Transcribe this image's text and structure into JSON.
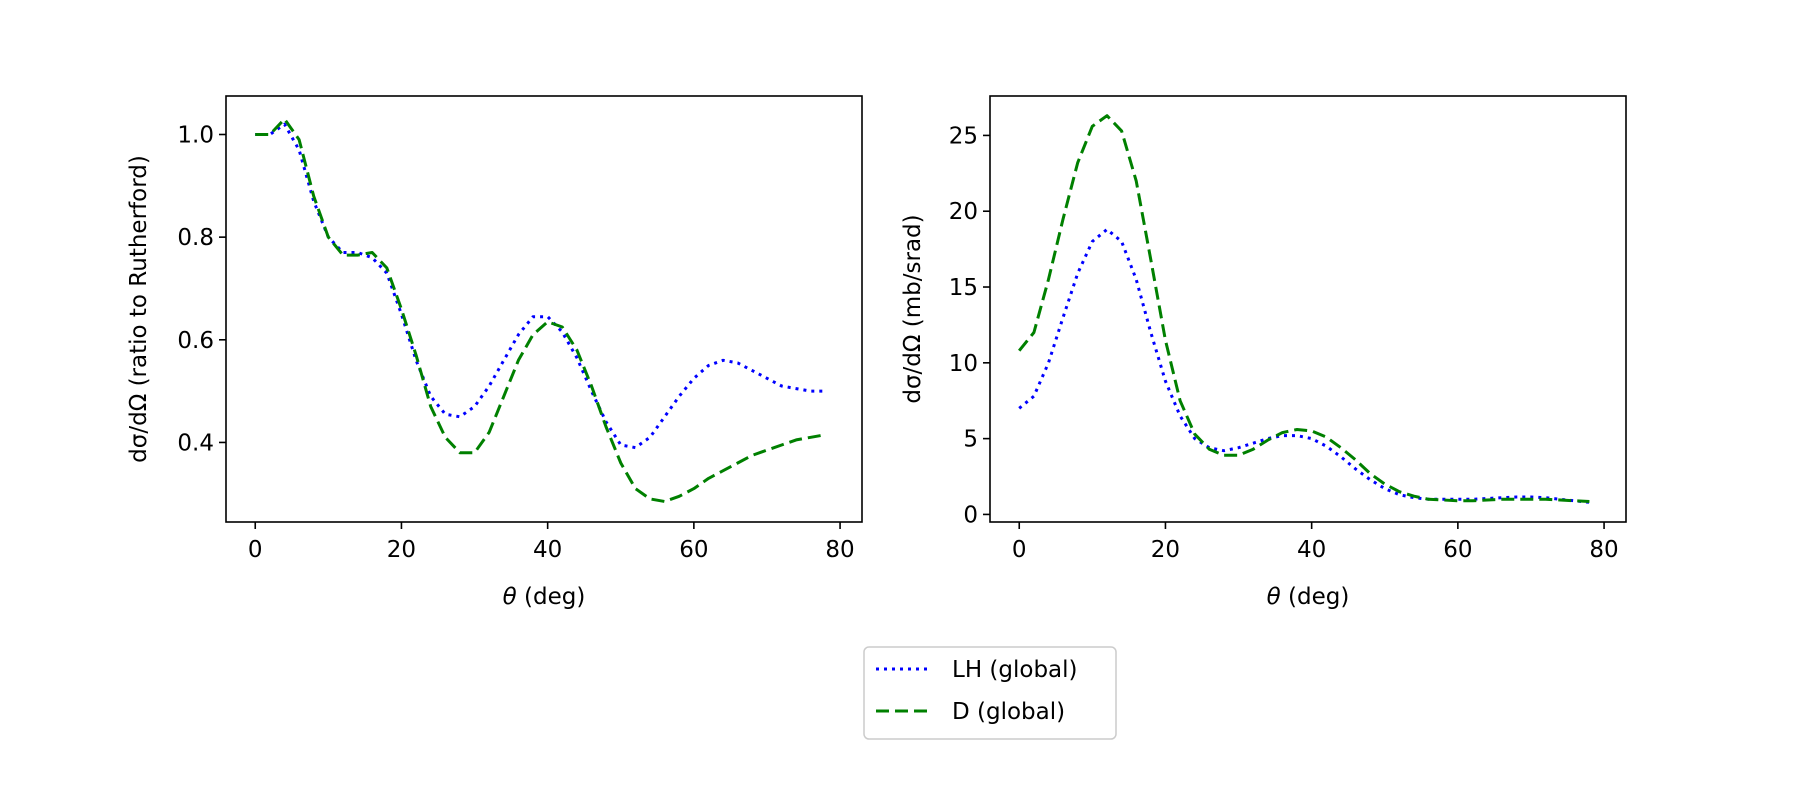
{
  "legend": {
    "items": [
      {
        "label": "LH (global)",
        "color": "#0000ff",
        "dash": "dotted"
      },
      {
        "label": "D (global)",
        "color": "#008000",
        "dash": "dashed"
      }
    ],
    "position": "bottom-center"
  },
  "chart_data": [
    {
      "type": "line",
      "xlabel_sym": "θ",
      "xlabel_unit": " (deg)",
      "ylabel": "dσ/dΩ (ratio to Rutherford)",
      "xlim": [
        -4,
        83
      ],
      "ylim": [
        0.245,
        1.075
      ],
      "xticks": [
        0,
        20,
        40,
        60,
        80
      ],
      "yticks": [
        0.4,
        0.6,
        0.8,
        1.0
      ],
      "ytick_labels": [
        "0.4",
        "0.6",
        "0.8",
        "1.0"
      ],
      "grid": false,
      "series": [
        {
          "name": "LH (global)",
          "color": "#0000ff",
          "dash": "dotted",
          "x": [
            0,
            2,
            4,
            6,
            8,
            10,
            12,
            14,
            16,
            18,
            20,
            22,
            24,
            26,
            28,
            30,
            32,
            34,
            36,
            38,
            40,
            42,
            44,
            46,
            48,
            50,
            52,
            54,
            56,
            58,
            60,
            62,
            64,
            66,
            68,
            70,
            72,
            74,
            76,
            78
          ],
          "y": [
            1.0,
            1.0,
            1.02,
            0.97,
            0.87,
            0.8,
            0.77,
            0.77,
            0.76,
            0.73,
            0.65,
            0.56,
            0.49,
            0.455,
            0.45,
            0.47,
            0.51,
            0.56,
            0.61,
            0.645,
            0.645,
            0.615,
            0.565,
            0.5,
            0.44,
            0.395,
            0.39,
            0.41,
            0.45,
            0.49,
            0.525,
            0.55,
            0.56,
            0.555,
            0.54,
            0.525,
            0.51,
            0.505,
            0.5,
            0.5
          ]
        },
        {
          "name": "D (global)",
          "color": "#008000",
          "dash": "dashed",
          "x": [
            0,
            2,
            4,
            6,
            8,
            10,
            12,
            14,
            16,
            18,
            20,
            22,
            24,
            26,
            28,
            30,
            32,
            34,
            36,
            38,
            40,
            42,
            44,
            46,
            48,
            50,
            52,
            54,
            56,
            58,
            60,
            62,
            64,
            66,
            68,
            70,
            72,
            74,
            76,
            78
          ],
          "y": [
            1.0,
            1.0,
            1.03,
            0.99,
            0.88,
            0.8,
            0.765,
            0.765,
            0.77,
            0.74,
            0.66,
            0.57,
            0.47,
            0.41,
            0.38,
            0.38,
            0.42,
            0.49,
            0.56,
            0.61,
            0.635,
            0.625,
            0.58,
            0.51,
            0.43,
            0.36,
            0.31,
            0.29,
            0.285,
            0.295,
            0.31,
            0.33,
            0.345,
            0.36,
            0.375,
            0.385,
            0.395,
            0.405,
            0.41,
            0.415
          ]
        }
      ]
    },
    {
      "type": "line",
      "xlabel_sym": "θ",
      "xlabel_unit": " (deg)",
      "ylabel": "dσ/dΩ (mb/srad)",
      "xlim": [
        -4,
        83
      ],
      "ylim": [
        -0.5,
        27.6
      ],
      "xticks": [
        0,
        20,
        40,
        60,
        80
      ],
      "yticks": [
        0,
        5,
        10,
        15,
        20,
        25
      ],
      "ytick_labels": [
        "0",
        "5",
        "10",
        "15",
        "20",
        "25"
      ],
      "grid": false,
      "series": [
        {
          "name": "LH (global)",
          "color": "#0000ff",
          "dash": "dotted",
          "x": [
            0,
            2,
            4,
            6,
            8,
            10,
            12,
            14,
            16,
            18,
            20,
            22,
            24,
            26,
            28,
            30,
            32,
            34,
            36,
            38,
            40,
            42,
            44,
            46,
            48,
            50,
            52,
            54,
            56,
            58,
            60,
            62,
            64,
            66,
            68,
            70,
            72,
            74,
            76,
            78
          ],
          "y": [
            7.0,
            7.8,
            10.0,
            13.0,
            15.9,
            18.0,
            18.8,
            18.0,
            15.5,
            12.0,
            8.8,
            6.5,
            5.0,
            4.4,
            4.2,
            4.4,
            4.7,
            5.0,
            5.2,
            5.2,
            5.0,
            4.5,
            3.8,
            3.0,
            2.3,
            1.7,
            1.3,
            1.1,
            1.0,
            1.0,
            1.0,
            1.0,
            1.05,
            1.1,
            1.15,
            1.15,
            1.1,
            1.0,
            0.9,
            0.8
          ]
        },
        {
          "name": "D (global)",
          "color": "#008000",
          "dash": "dashed",
          "x": [
            0,
            2,
            4,
            6,
            8,
            10,
            12,
            14,
            16,
            18,
            20,
            22,
            24,
            26,
            28,
            30,
            32,
            34,
            36,
            38,
            40,
            42,
            44,
            46,
            48,
            50,
            52,
            54,
            56,
            58,
            60,
            62,
            64,
            66,
            68,
            70,
            72,
            74,
            76,
            78
          ],
          "y": [
            10.8,
            12.0,
            15.5,
            19.5,
            23.2,
            25.6,
            26.3,
            25.3,
            22.0,
            16.8,
            11.5,
            7.5,
            5.3,
            4.3,
            3.9,
            3.9,
            4.3,
            4.9,
            5.4,
            5.6,
            5.5,
            5.1,
            4.4,
            3.6,
            2.7,
            2.0,
            1.5,
            1.2,
            1.0,
            0.95,
            0.9,
            0.9,
            0.95,
            1.0,
            1.0,
            1.0,
            1.0,
            0.95,
            0.9,
            0.85
          ]
        }
      ]
    }
  ]
}
